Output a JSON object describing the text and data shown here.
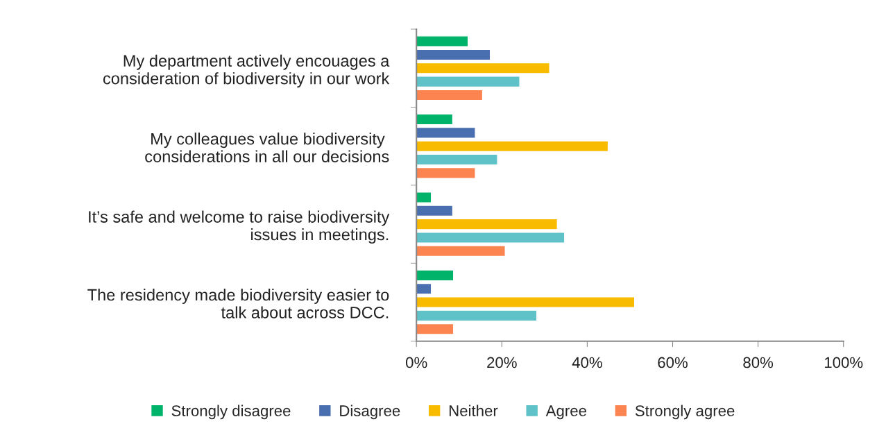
{
  "chart_data": {
    "type": "bar",
    "orientation": "horizontal",
    "categories": [
      "My department actively encouages a\nconsideration of biodiversity in our work",
      "My colleagues value biodiversity \nconsiderations in all our decisions",
      "It’s safe and welcome to raise biodiversity\nissues in meetings.",
      "The residency made biodiversity easier to\ntalk about across DCC."
    ],
    "series": [
      {
        "name": "Strongly disagree",
        "color": "#00b36b",
        "values": [
          12.1,
          8.5,
          3.5,
          8.7
        ]
      },
      {
        "name": "Disagree",
        "color": "#4a6fb0",
        "values": [
          17.3,
          13.8,
          8.5,
          3.5
        ]
      },
      {
        "name": "Neither",
        "color": "#f9bb00",
        "values": [
          31.2,
          44.9,
          33.0,
          51.1
        ]
      },
      {
        "name": "Agree",
        "color": "#5ec2c8",
        "values": [
          24.2,
          19.0,
          34.7,
          28.2
        ]
      },
      {
        "name": "Strongly agree",
        "color": "#fc8451",
        "values": [
          15.5,
          13.8,
          20.8,
          8.7
        ]
      }
    ],
    "xlim": [
      0,
      100
    ],
    "xticks": [
      {
        "value": 0,
        "label": "0%"
      },
      {
        "value": 20,
        "label": "20%"
      },
      {
        "value": 40,
        "label": "40%"
      },
      {
        "value": 60,
        "label": "60%"
      },
      {
        "value": 80,
        "label": "80%"
      },
      {
        "value": 100,
        "label": "100%"
      }
    ],
    "grid": false,
    "legend": "bottom"
  }
}
